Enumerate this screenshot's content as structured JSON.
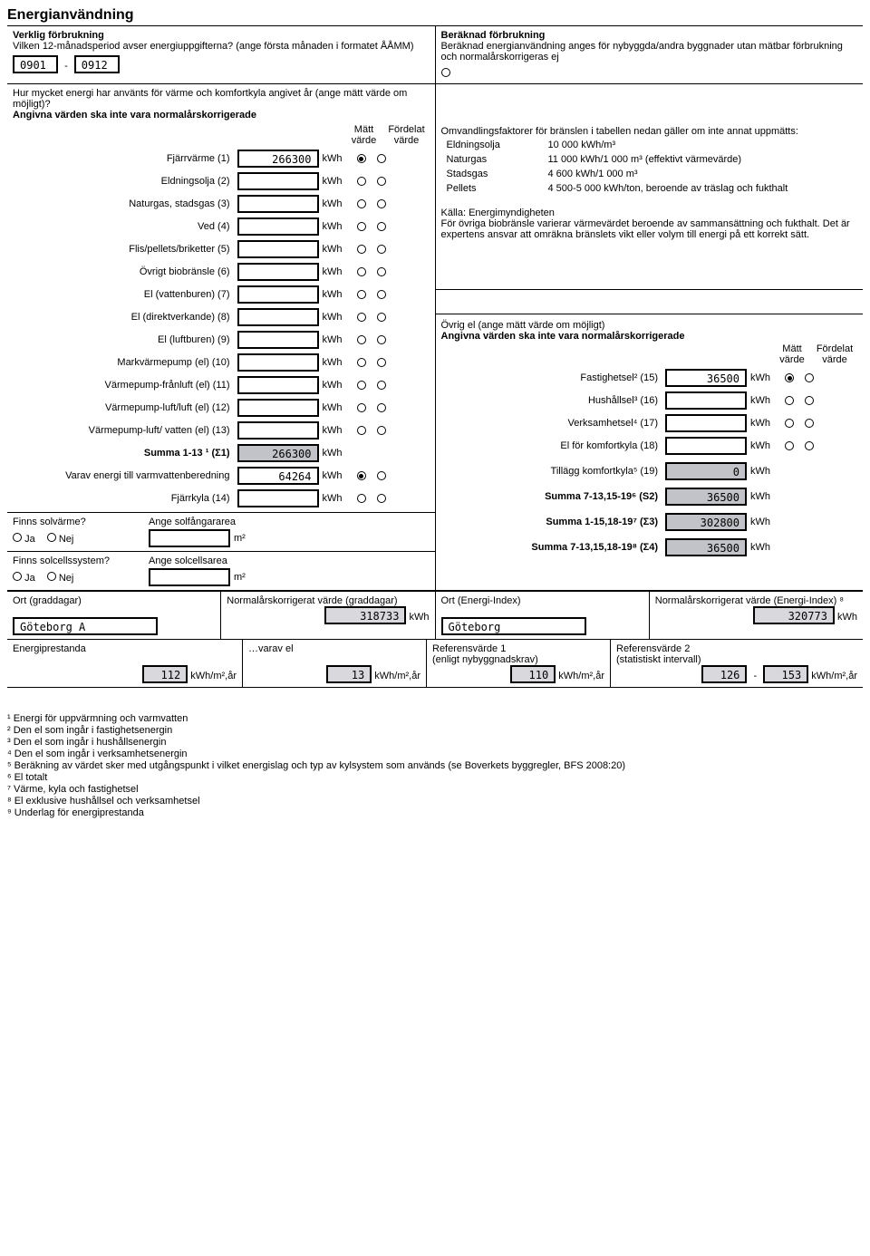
{
  "title": "Energianvändning",
  "header": {
    "left": {
      "h1": "Verklig förbrukning",
      "q": "Vilken 12-månadsperiod avser energiuppgifterna? (ange första månaden i formatet ÅÅMM)",
      "from": "0901",
      "to": "0912"
    },
    "right": {
      "h1": "Beräknad förbrukning",
      "txt": "Beräknad energianvändning anges för nybyggda/andra byggnader utan mätbar förbrukning och normalårskorrigeras ej",
      "symbol": "€"
    }
  },
  "energyQ": "Hur mycket energi har använts för värme och komfortkyla angivet år (ange mätt värde om möjligt)?",
  "energyNote": "Angivna värden ska inte vara normalårskorrigerade",
  "colHdr": {
    "matt": "Mätt värde",
    "fordelat": "Fördelat värde"
  },
  "rows": [
    {
      "lbl": "Fjärrvärme (1)",
      "val": "266300",
      "u": "kWh",
      "m": true,
      "f": false
    },
    {
      "lbl": "Eldningsolja (2)",
      "val": "",
      "u": "kWh",
      "m": false,
      "f": false
    },
    {
      "lbl": "Naturgas, stadsgas (3)",
      "val": "",
      "u": "kWh",
      "m": false,
      "f": false
    },
    {
      "lbl": "Ved (4)",
      "val": "",
      "u": "kWh",
      "m": false,
      "f": false
    },
    {
      "lbl": "Flis/pellets/briketter (5)",
      "val": "",
      "u": "kWh",
      "m": false,
      "f": false
    },
    {
      "lbl": "Övrigt biobränsle (6)",
      "val": "",
      "u": "kWh",
      "m": false,
      "f": false
    },
    {
      "lbl": "El (vattenburen) (7)",
      "val": "",
      "u": "kWh",
      "m": false,
      "f": false
    },
    {
      "lbl": "El (direktverkande) (8)",
      "val": "",
      "u": "kWh",
      "m": false,
      "f": false
    },
    {
      "lbl": "El (luftburen) (9)",
      "val": "",
      "u": "kWh",
      "m": false,
      "f": false
    },
    {
      "lbl": "Markvärmepump (el) (10)",
      "val": "",
      "u": "kWh",
      "m": false,
      "f": false
    },
    {
      "lbl": "Värmepump-frånluft (el) (11)",
      "val": "",
      "u": "kWh",
      "m": false,
      "f": false
    },
    {
      "lbl": "Värmepump-luft/luft (el) (12)",
      "val": "",
      "u": "kWh",
      "m": false,
      "f": false
    },
    {
      "lbl": "Värmepump-luft/ vatten (el) (13)",
      "val": "",
      "u": "kWh",
      "m": false,
      "f": false
    }
  ],
  "sum113": {
    "lbl": "Summa 1-13 ¹ (Σ1)",
    "val": "266300",
    "u": "kWh"
  },
  "varav": {
    "lbl": "Varav energi till varmvattenberedning",
    "val": "64264",
    "u": "kWh",
    "m": true,
    "f": false
  },
  "fjarrkyla": {
    "lbl": "Fjärrkyla (14)",
    "val": "",
    "u": "kWh",
    "m": false,
    "f": false
  },
  "conversion": {
    "intro": "Omvandlingsfaktorer för bränslen i tabellen nedan gäller om inte annat uppmätts:",
    "items": [
      {
        "k": "Eldningsolja",
        "v": "10 000 kWh/m³"
      },
      {
        "k": "Naturgas",
        "v": "11 000 kWh/1 000 m³ (effektivt värmevärde)"
      },
      {
        "k": "Stadsgas",
        "v": "4 600 kWh/1 000 m³"
      },
      {
        "k": "Pellets",
        "v": "4 500-5 000 kWh/ton, beroende av träslag och fukthalt"
      }
    ],
    "src": "Källa: Energimyndigheten",
    "note": "För övriga biobränsle varierar värmevärdet beroende av sammansättning och fukthalt. Det är expertens ansvar att omräkna bränslets vikt eller volym till energi på ett korrekt sätt."
  },
  "ovrigEl": {
    "h": "Övrig el (ange mätt värde om möjligt)",
    "note": "Angivna värden ska inte vara normalårskorrigerade",
    "rows": [
      {
        "lbl": "Fastighetsel² (15)",
        "val": "36500",
        "u": "kWh",
        "m": true,
        "f": false
      },
      {
        "lbl": "Hushållsel³ (16)",
        "val": "",
        "u": "kWh",
        "m": false,
        "f": false
      },
      {
        "lbl": "Verksamhetsel⁴ (17)",
        "val": "",
        "u": "kWh",
        "m": false,
        "f": false
      },
      {
        "lbl": "El för komfortkyla (18)",
        "val": "",
        "u": "kWh",
        "m": false,
        "f": false
      }
    ],
    "tillagg": {
      "lbl": "Tillägg komfortkyla⁵ (19)",
      "val": "0",
      "u": "kWh"
    },
    "s2": {
      "lbl": "Summa 7-13,15-19⁶ (S2)",
      "val": "36500",
      "u": "kWh"
    },
    "s3": {
      "lbl": "Summa 1-15,18-19⁷ (Σ3)",
      "val": "302800",
      "u": "kWh"
    },
    "s4": {
      "lbl": "Summa 7-13,15,18-19⁸ (Σ4)",
      "val": "36500",
      "u": "kWh"
    }
  },
  "solar": {
    "q1": "Finns solvärme?",
    "a1": "Ange solfångararea",
    "u1": "m²",
    "q2": "Finns solcellssystem?",
    "a2": "Ange solcellsarea",
    "u2": "m²",
    "ja": "Ja",
    "nej": "Nej"
  },
  "bottom1": {
    "ortG": "Ort (graddagar)",
    "ortGval": "Göteborg A",
    "normG": "Normalårskorrigerat värde (graddagar)",
    "normGval": "318733",
    "normGu": "kWh",
    "ortE": "Ort (Energi-Index)",
    "ortEval": "Göteborg",
    "normE": "Normalårskorrigerat värde (Energi-Index) ⁸",
    "normEval": "320773",
    "normEu": "kWh"
  },
  "bottom2": {
    "ep": "Energiprestanda",
    "epVal": "112",
    "epU": "kWh/m²,år",
    "vel": "…varav el",
    "velVal": "13",
    "velU": "kWh/m²,år",
    "ref1": "Referensvärde 1",
    "ref1sub": "(enligt nybyggnadskrav)",
    "ref1Val": "110",
    "ref1U": "kWh/m²,år",
    "ref2": "Referensvärde 2",
    "ref2sub": "(statistiskt intervall)",
    "ref2From": "126",
    "ref2To": "153",
    "ref2U": "kWh/m²,år"
  },
  "footnotes": [
    "¹ Energi för uppvärmning och varmvatten",
    "² Den el som ingår i fastighetsenergin",
    "³ Den el som ingår i hushållsenergin",
    "⁴ Den el som ingår i verksamhetsenergin",
    "⁵ Beräkning av värdet sker med utgångspunkt i vilket energislag och typ av kylsystem som används (se Boverkets byggregler, BFS 2008:20)",
    "⁶ El totalt",
    "⁷ Värme, kyla och fastighetsel",
    "⁸ El exklusive hushållsel och verksamhetsel",
    "⁹ Underlag för energiprestanda"
  ]
}
